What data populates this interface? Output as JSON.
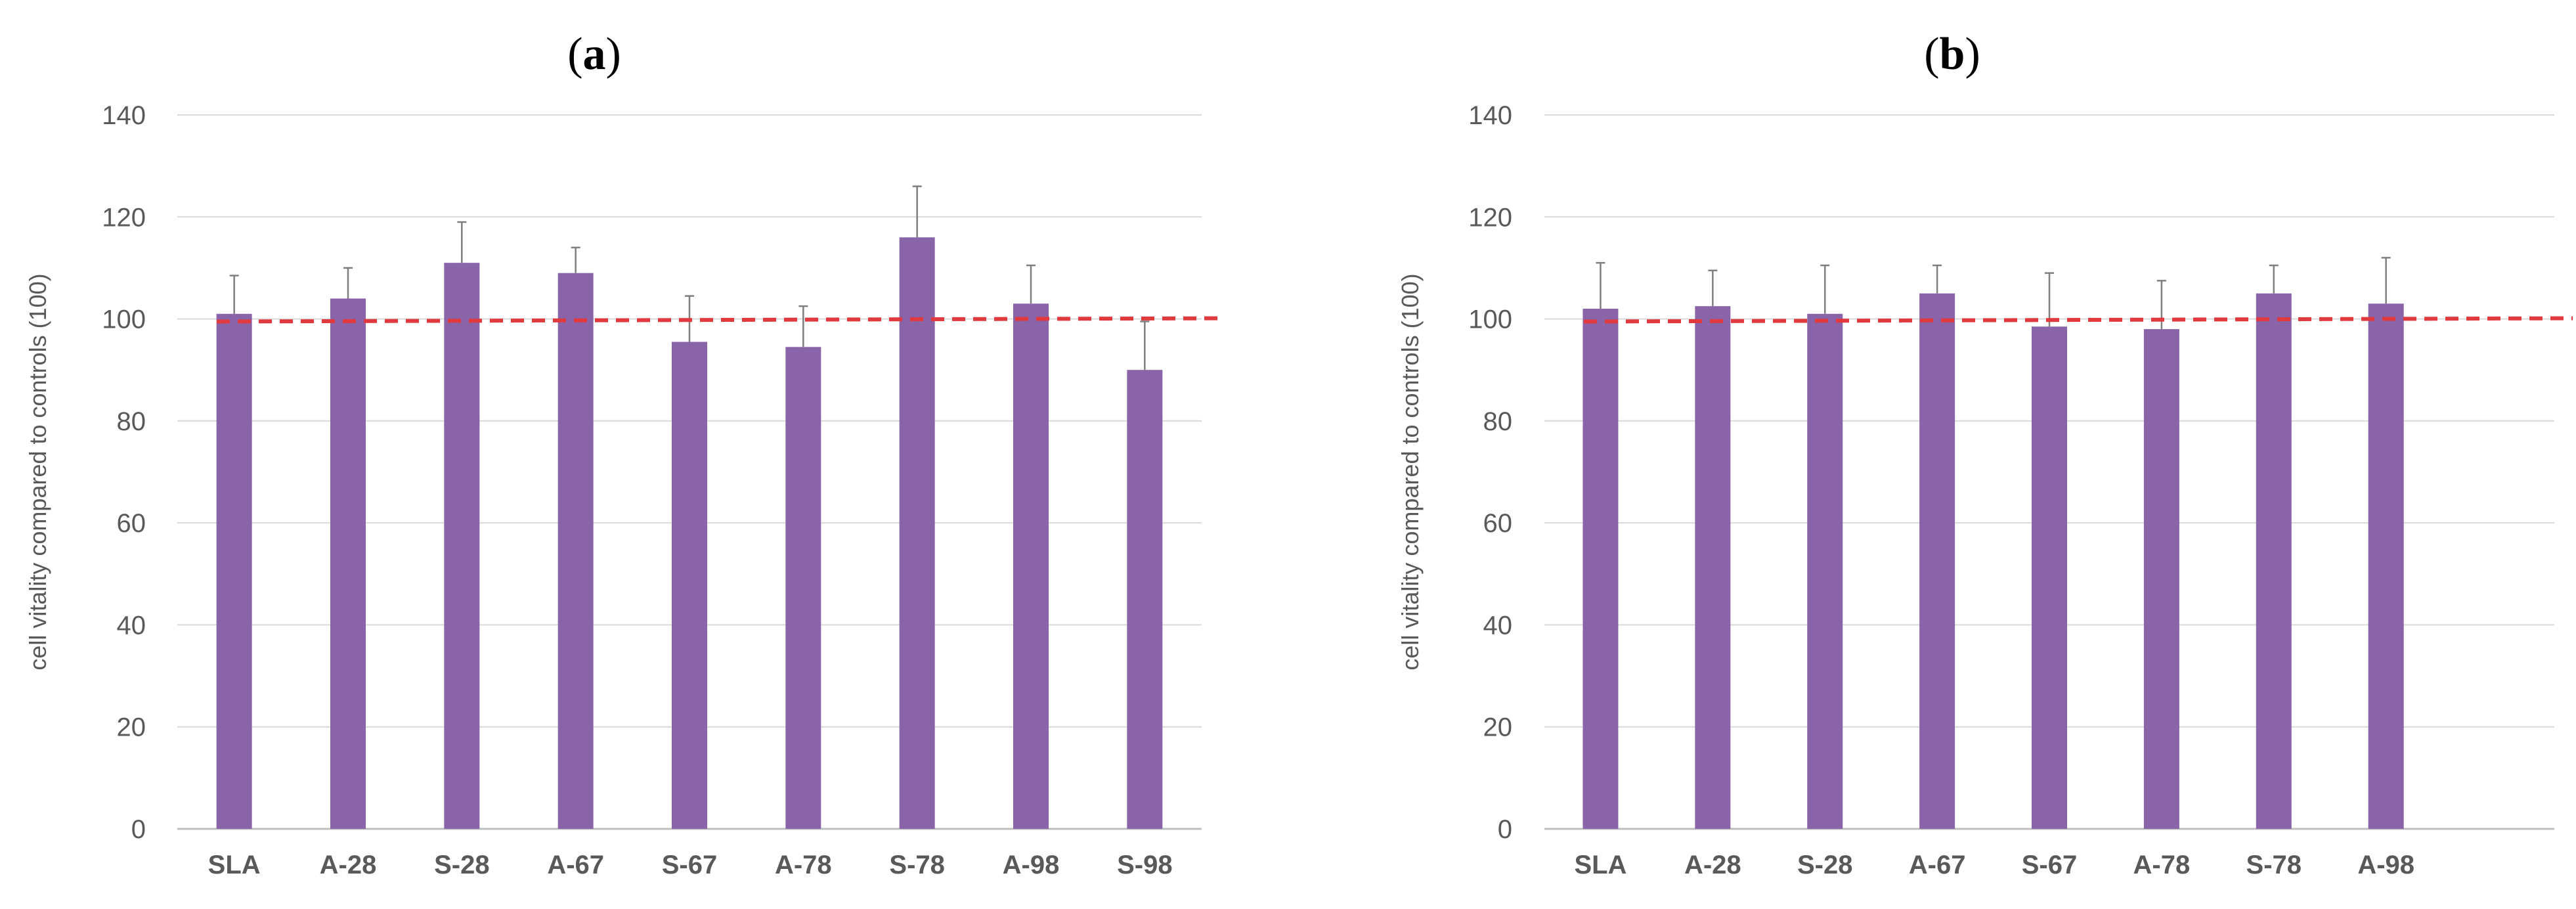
{
  "chart_data": [
    {
      "type": "bar",
      "title": "(a)",
      "title_letter": "a",
      "xlabel": "",
      "ylabel": "cell vitality compared to controls  (100)",
      "categories": [
        "SLA",
        "A-28",
        "S-28",
        "A-67",
        "S-67",
        "A-78",
        "S-78",
        "A-98",
        "S-98"
      ],
      "values": [
        101,
        104,
        111,
        109,
        95.5,
        94.5,
        116,
        103,
        90
      ],
      "errors": [
        7.5,
        6,
        8,
        5,
        9,
        8,
        10,
        7.5,
        9.5
      ],
      "ylim": [
        0,
        140
      ],
      "yticks": [
        0,
        20,
        40,
        60,
        80,
        100,
        120,
        140
      ],
      "reference_line": 100,
      "grid": true
    },
    {
      "type": "bar",
      "title": "(b)",
      "title_letter": "b",
      "xlabel": "",
      "ylabel": "cell vitality compared to controls  (100)",
      "categories": [
        "SLA",
        "A-28",
        "S-28",
        "A-67",
        "S-67",
        "A-78",
        "S-78",
        "A-98"
      ],
      "values": [
        102,
        102.5,
        101,
        105,
        98.5,
        98,
        105,
        103
      ],
      "errors": [
        9,
        7,
        9.5,
        5.5,
        10.5,
        9.5,
        5.5,
        9
      ],
      "ylim": [
        0,
        140
      ],
      "yticks": [
        0,
        20,
        40,
        60,
        80,
        100,
        120,
        140
      ],
      "reference_line": 100,
      "grid": true
    }
  ],
  "colors": {
    "bar": "#8a64a8",
    "reference_line": "#e0393e",
    "grid": "#d9d9d9",
    "error_bar": "#7f7f7f"
  }
}
